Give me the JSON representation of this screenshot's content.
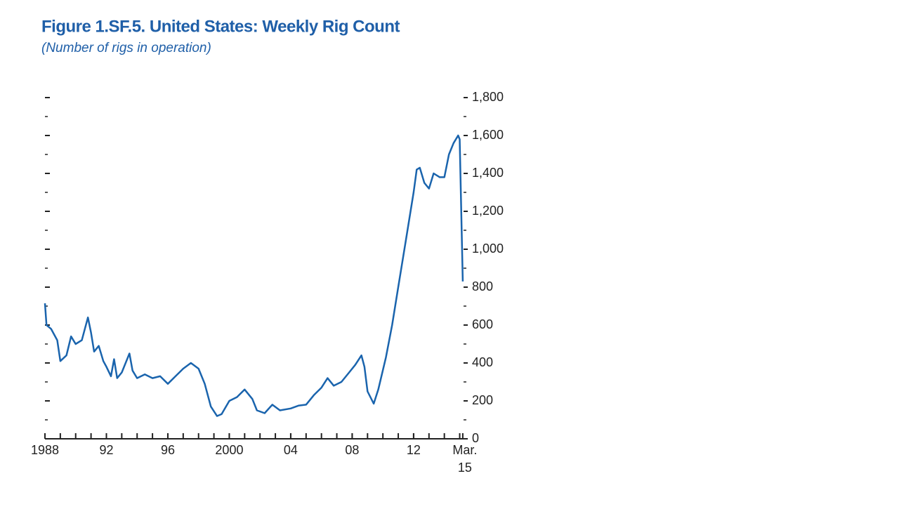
{
  "chart_data": {
    "type": "line",
    "title": "Figure 1.SF.5.  United States: Weekly Rig Count",
    "subtitle": "(Number of rigs in operation)",
    "xlim": [
      1988,
      2015.25
    ],
    "xticks": [
      {
        "value": 1988,
        "label": "1988"
      },
      {
        "value": 1992,
        "label": "92"
      },
      {
        "value": 1996,
        "label": "96"
      },
      {
        "value": 2000,
        "label": "2000"
      },
      {
        "value": 2004,
        "label": "04"
      },
      {
        "value": 2008,
        "label": "08"
      },
      {
        "value": 2012,
        "label": "12"
      },
      {
        "value": 2015.2,
        "label": "Mar.\n15"
      }
    ],
    "xminor_ticks": [
      1988,
      1989,
      1990,
      1991,
      1992,
      1993,
      1994,
      1995,
      1996,
      1997,
      1998,
      1999,
      2000,
      2001,
      2002,
      2003,
      2004,
      2005,
      2006,
      2007,
      2008,
      2009,
      2010,
      2011,
      2012,
      2013,
      2014,
      2015
    ],
    "ylim": [
      0,
      1800
    ],
    "yticks": [
      0,
      {
        "value": 200,
        "label": "200"
      },
      {
        "value": 400,
        "label": "400"
      },
      {
        "value": 600,
        "label": "600"
      },
      {
        "value": 800,
        "label": "800"
      },
      {
        "value": 1000,
        "label": "1,000"
      },
      {
        "value": 1200,
        "label": "1,200"
      },
      {
        "value": 1400,
        "label": "1,400"
      },
      {
        "value": 1600,
        "label": "1,600"
      },
      {
        "value": 1800,
        "label": "1,800"
      }
    ],
    "yminor_ticks": [
      100,
      300,
      500,
      700,
      900,
      1100,
      1300,
      1500,
      1700
    ],
    "series": [
      {
        "color": "#1a64ad",
        "x": [
          1988.0,
          1988.1,
          1988.4,
          1988.8,
          1989.0,
          1989.4,
          1989.7,
          1990.0,
          1990.4,
          1990.8,
          1991.0,
          1991.2,
          1991.5,
          1991.8,
          1992.0,
          1992.3,
          1992.5,
          1992.7,
          1993.0,
          1993.5,
          1993.7,
          1994.0,
          1994.5,
          1995.0,
          1995.5,
          1996.0,
          1996.5,
          1997.0,
          1997.5,
          1998.0,
          1998.4,
          1998.8,
          1999.2,
          1999.5,
          2000.0,
          2000.5,
          2001.0,
          2001.5,
          2001.8,
          2002.3,
          2002.8,
          2003.3,
          2004.0,
          2004.5,
          2005.0,
          2005.5,
          2006.0,
          2006.4,
          2006.8,
          2007.3,
          2007.8,
          2008.2,
          2008.6,
          2008.8,
          2009.0,
          2009.4,
          2009.7,
          2010.2,
          2010.6,
          2011.0,
          2011.5,
          2012.0,
          2012.2,
          2012.4,
          2012.7,
          2013.0,
          2013.3,
          2013.7,
          2014.0,
          2014.3,
          2014.6,
          2014.9,
          2015.0,
          2015.2
        ],
        "values": [
          715,
          600,
          580,
          520,
          410,
          440,
          540,
          500,
          520,
          640,
          560,
          460,
          490,
          410,
          380,
          330,
          420,
          320,
          350,
          450,
          360,
          320,
          340,
          320,
          330,
          290,
          330,
          370,
          400,
          370,
          290,
          170,
          120,
          130,
          200,
          220,
          260,
          210,
          150,
          135,
          180,
          150,
          160,
          175,
          180,
          230,
          270,
          320,
          280,
          300,
          350,
          390,
          440,
          380,
          250,
          185,
          260,
          430,
          600,
          800,
          1050,
          1300,
          1420,
          1430,
          1350,
          1320,
          1400,
          1380,
          1380,
          1500,
          1560,
          1600,
          1580,
          830
        ]
      }
    ]
  }
}
